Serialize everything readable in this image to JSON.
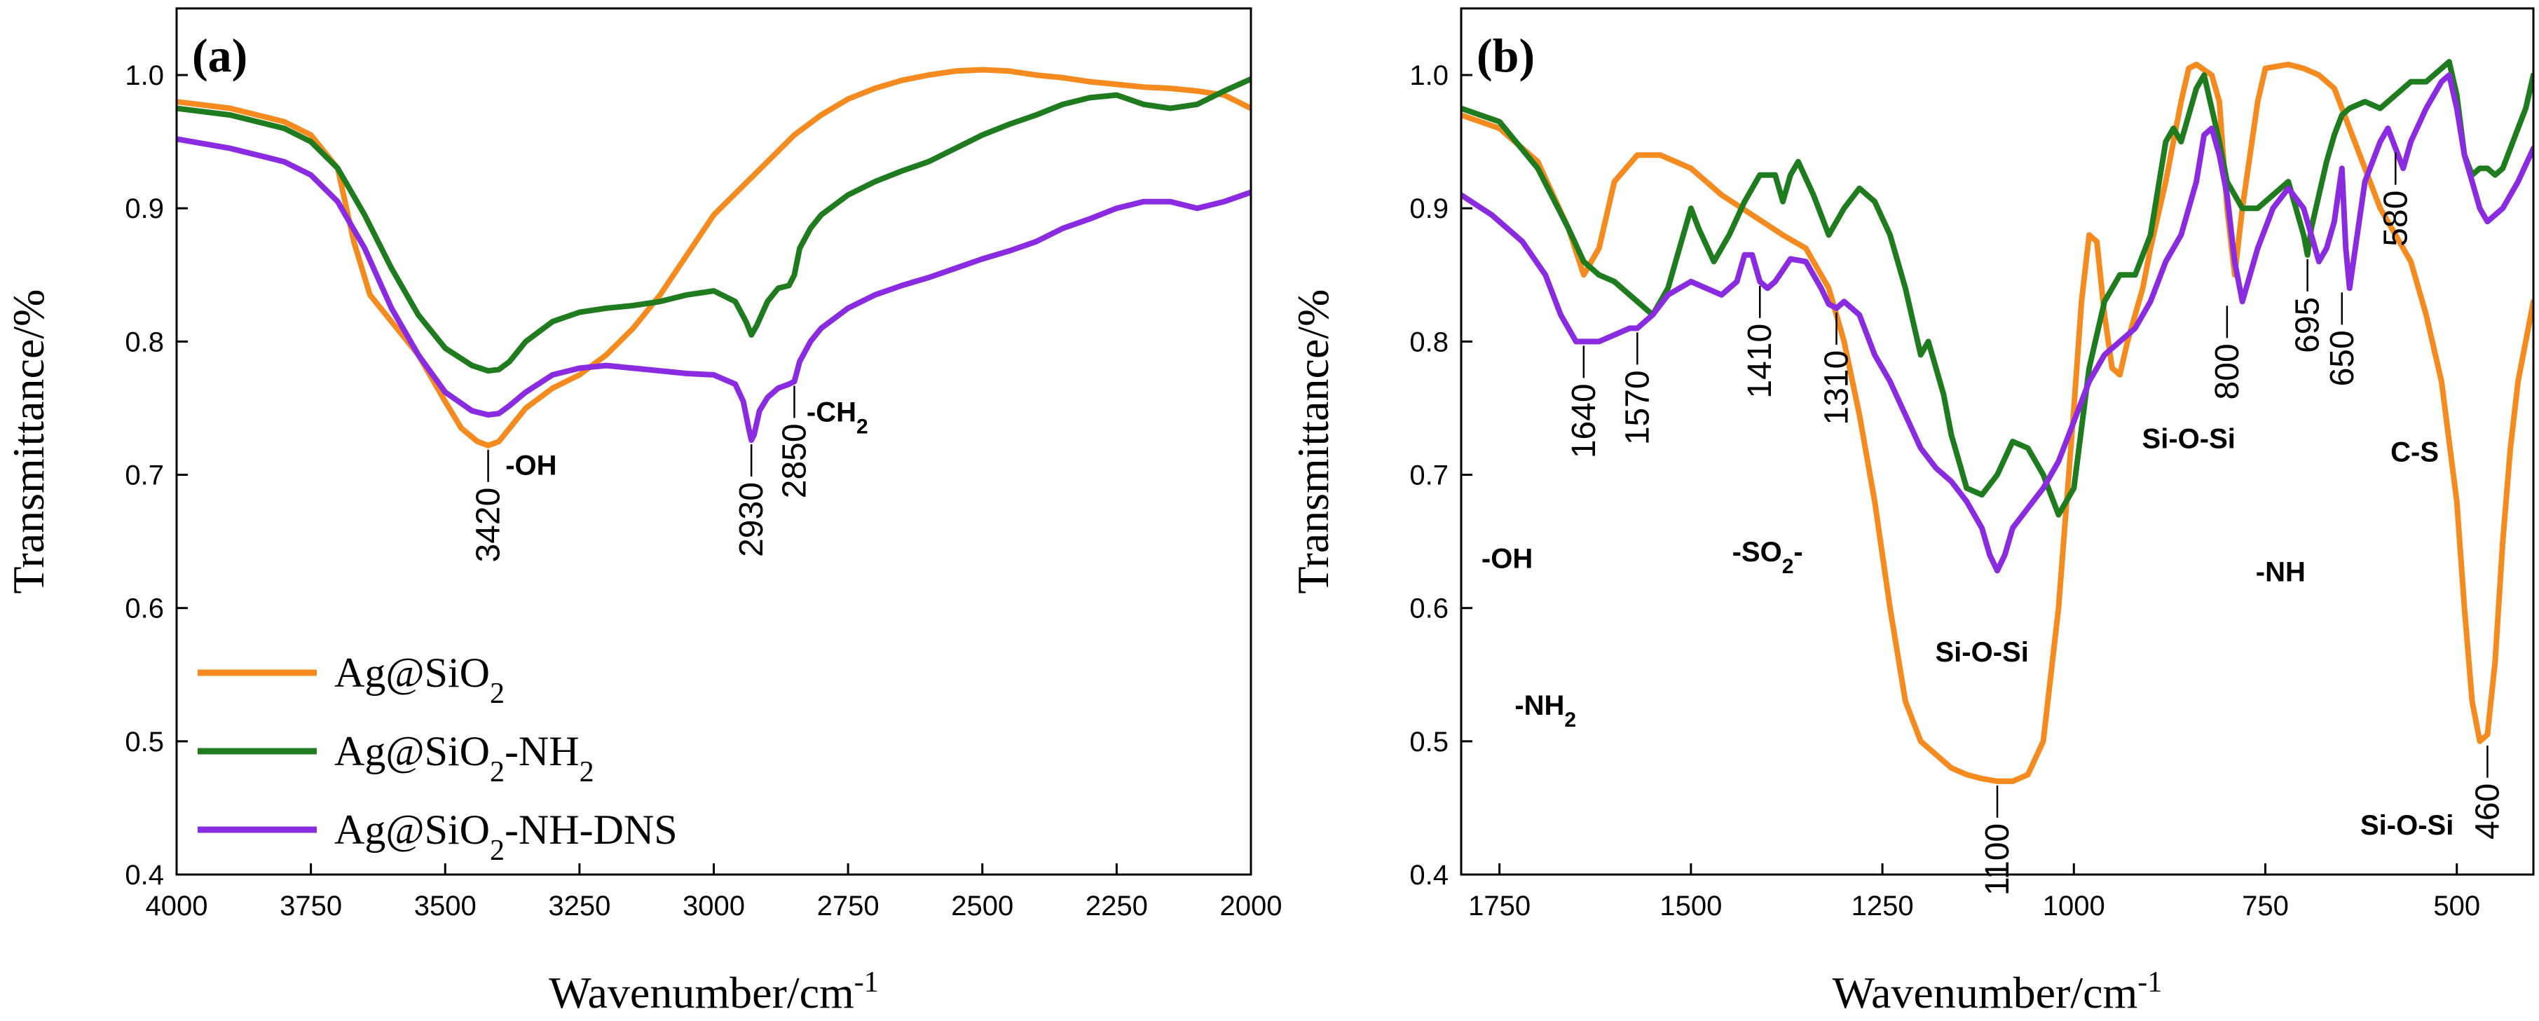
{
  "chart_data": [
    {
      "type": "line",
      "panel": "(a)",
      "xlabel": "Wavenumber/cm",
      "xlabel_sup": "-1",
      "ylabel": "Transmittance/%",
      "xlim": [
        4000,
        2000
      ],
      "ylim": [
        0.4,
        1.05
      ],
      "x_ticks": [
        4000,
        3750,
        3500,
        3250,
        3000,
        2750,
        2500,
        2250,
        2000
      ],
      "x_tick_labels": [
        "4000",
        "3750",
        "3500",
        "3250",
        "3000",
        "2750",
        "2500",
        "2250",
        "2000"
      ],
      "y_ticks": [
        0.4,
        0.5,
        0.6,
        0.7,
        0.8,
        0.9,
        1.0
      ],
      "y_tick_labels": [
        "0.4",
        "0.5",
        "0.6",
        "0.7",
        "0.8",
        "0.9",
        "1.0"
      ],
      "legend_position": "bottom-left",
      "series": [
        {
          "name": "Ag@SiO2",
          "label_main": "Ag@SiO",
          "label_sub": "2",
          "label_suffix": "",
          "color": "#F58A1F",
          "x": [
            4000,
            3900,
            3800,
            3750,
            3700,
            3670,
            3640,
            3600,
            3550,
            3500,
            3470,
            3440,
            3420,
            3400,
            3380,
            3350,
            3300,
            3250,
            3200,
            3150,
            3100,
            3050,
            3000,
            2950,
            2900,
            2850,
            2800,
            2750,
            2700,
            2650,
            2600,
            2550,
            2500,
            2450,
            2400,
            2350,
            2300,
            2250,
            2200,
            2150,
            2100,
            2050,
            2000
          ],
          "values": [
            0.98,
            0.975,
            0.965,
            0.955,
            0.93,
            0.875,
            0.835,
            0.815,
            0.79,
            0.755,
            0.735,
            0.725,
            0.722,
            0.725,
            0.735,
            0.75,
            0.765,
            0.775,
            0.79,
            0.81,
            0.835,
            0.865,
            0.895,
            0.915,
            0.935,
            0.955,
            0.97,
            0.982,
            0.99,
            0.996,
            1.0,
            1.003,
            1.004,
            1.003,
            1.0,
            0.998,
            0.995,
            0.993,
            0.991,
            0.99,
            0.988,
            0.985,
            0.975
          ]
        },
        {
          "name": "Ag@SiO2-NH2",
          "label_main": "Ag@SiO",
          "label_sub": "2",
          "label_suffix": "-NH",
          "label_sub2": "2",
          "color": "#1E7B1E",
          "x": [
            4000,
            3900,
            3800,
            3750,
            3700,
            3650,
            3600,
            3550,
            3500,
            3450,
            3420,
            3400,
            3380,
            3350,
            3300,
            3250,
            3200,
            3150,
            3100,
            3050,
            3000,
            2960,
            2940,
            2930,
            2920,
            2900,
            2880,
            2860,
            2850,
            2840,
            2820,
            2800,
            2750,
            2700,
            2650,
            2600,
            2550,
            2500,
            2450,
            2400,
            2350,
            2300,
            2250,
            2200,
            2150,
            2100,
            2050,
            2000
          ],
          "values": [
            0.975,
            0.97,
            0.96,
            0.95,
            0.93,
            0.895,
            0.855,
            0.82,
            0.795,
            0.782,
            0.778,
            0.779,
            0.785,
            0.8,
            0.815,
            0.822,
            0.825,
            0.827,
            0.83,
            0.835,
            0.838,
            0.83,
            0.815,
            0.805,
            0.812,
            0.83,
            0.84,
            0.842,
            0.85,
            0.87,
            0.885,
            0.895,
            0.91,
            0.92,
            0.928,
            0.935,
            0.945,
            0.955,
            0.963,
            0.97,
            0.978,
            0.983,
            0.985,
            0.978,
            0.975,
            0.978,
            0.988,
            0.997
          ]
        },
        {
          "name": "Ag@SiO2-NH-DNS",
          "label_main": "Ag@SiO",
          "label_sub": "2",
          "label_suffix": "-NH-DNS",
          "color": "#8A2BE2",
          "x": [
            4000,
            3900,
            3800,
            3750,
            3700,
            3650,
            3600,
            3550,
            3500,
            3450,
            3420,
            3400,
            3380,
            3350,
            3300,
            3250,
            3200,
            3150,
            3100,
            3050,
            3000,
            2960,
            2945,
            2935,
            2930,
            2925,
            2915,
            2900,
            2880,
            2860,
            2850,
            2840,
            2820,
            2800,
            2750,
            2700,
            2650,
            2600,
            2550,
            2500,
            2450,
            2400,
            2350,
            2300,
            2250,
            2200,
            2150,
            2100,
            2050,
            2000
          ],
          "values": [
            0.952,
            0.945,
            0.935,
            0.925,
            0.905,
            0.87,
            0.825,
            0.79,
            0.762,
            0.748,
            0.745,
            0.746,
            0.752,
            0.762,
            0.775,
            0.78,
            0.782,
            0.78,
            0.778,
            0.776,
            0.775,
            0.768,
            0.755,
            0.735,
            0.726,
            0.73,
            0.748,
            0.758,
            0.765,
            0.768,
            0.77,
            0.785,
            0.8,
            0.81,
            0.825,
            0.835,
            0.842,
            0.848,
            0.855,
            0.862,
            0.868,
            0.875,
            0.885,
            0.892,
            0.9,
            0.905,
            0.905,
            0.9,
            0.905,
            0.912
          ]
        }
      ],
      "peak_annotations": [
        {
          "label": "3420",
          "x": 3420,
          "y": 0.722
        },
        {
          "label": "2930",
          "x": 2930,
          "y": 0.726
        },
        {
          "label": "2850",
          "x": 2850,
          "y": 0.77
        }
      ],
      "group_annotations": [
        {
          "text": "-OH",
          "sub": "",
          "x": 3340,
          "y": 0.7
        },
        {
          "text": "-CH",
          "sub": "2",
          "x": 2770,
          "y": 0.74
        }
      ]
    },
    {
      "type": "line",
      "panel": "(b)",
      "xlabel": "Wavenumber/cm",
      "xlabel_sup": "-1",
      "ylabel": "Transmittance/%",
      "xlim": [
        1800,
        400
      ],
      "ylim": [
        0.4,
        1.05
      ],
      "x_ticks": [
        1750,
        1500,
        1250,
        1000,
        750,
        500
      ],
      "x_tick_labels": [
        "1750",
        "1500",
        "1250",
        "1000",
        "750",
        "500"
      ],
      "y_ticks": [
        0.4,
        0.5,
        0.6,
        0.7,
        0.8,
        0.9,
        1.0
      ],
      "y_tick_labels": [
        "0.4",
        "0.5",
        "0.6",
        "0.7",
        "0.8",
        "0.9",
        "1.0"
      ],
      "series": [
        {
          "name": "Ag@SiO2",
          "color": "#F58A1F",
          "x": [
            1800,
            1750,
            1700,
            1660,
            1640,
            1620,
            1600,
            1570,
            1540,
            1500,
            1460,
            1420,
            1380,
            1350,
            1320,
            1300,
            1280,
            1260,
            1240,
            1220,
            1200,
            1180,
            1160,
            1140,
            1120,
            1100,
            1080,
            1060,
            1040,
            1020,
            1000,
            990,
            980,
            970,
            960,
            950,
            940,
            930,
            910,
            900,
            880,
            860,
            850,
            840,
            820,
            810,
            800,
            790,
            780,
            760,
            750,
            720,
            700,
            680,
            660,
            640,
            620,
            600,
            580,
            560,
            540,
            520,
            500,
            490,
            480,
            470,
            460,
            450,
            440,
            430,
            420,
            400
          ],
          "values": [
            0.97,
            0.96,
            0.935,
            0.885,
            0.85,
            0.87,
            0.92,
            0.94,
            0.94,
            0.93,
            0.91,
            0.895,
            0.88,
            0.87,
            0.84,
            0.8,
            0.745,
            0.68,
            0.6,
            0.53,
            0.5,
            0.49,
            0.48,
            0.475,
            0.472,
            0.47,
            0.47,
            0.475,
            0.5,
            0.6,
            0.75,
            0.83,
            0.88,
            0.875,
            0.82,
            0.78,
            0.775,
            0.8,
            0.84,
            0.87,
            0.92,
            0.98,
            1.005,
            1.008,
            1.0,
            0.98,
            0.9,
            0.85,
            0.9,
            0.98,
            1.005,
            1.008,
            1.005,
            1.0,
            0.99,
            0.96,
            0.93,
            0.9,
            0.88,
            0.86,
            0.82,
            0.77,
            0.68,
            0.6,
            0.53,
            0.5,
            0.505,
            0.56,
            0.65,
            0.72,
            0.77,
            0.83
          ]
        },
        {
          "name": "Ag@SiO2-NH2",
          "color": "#1E7B1E",
          "x": [
            1800,
            1750,
            1700,
            1660,
            1640,
            1620,
            1600,
            1570,
            1550,
            1530,
            1520,
            1500,
            1490,
            1470,
            1450,
            1430,
            1410,
            1390,
            1380,
            1370,
            1360,
            1340,
            1320,
            1300,
            1280,
            1260,
            1240,
            1220,
            1200,
            1190,
            1180,
            1170,
            1160,
            1150,
            1140,
            1120,
            1100,
            1080,
            1060,
            1040,
            1020,
            1000,
            980,
            960,
            940,
            920,
            900,
            880,
            870,
            860,
            840,
            830,
            820,
            810,
            800,
            780,
            760,
            740,
            720,
            700,
            695,
            690,
            680,
            670,
            660,
            650,
            640,
            620,
            600,
            580,
            560,
            540,
            520,
            510,
            500,
            490,
            480,
            470,
            460,
            450,
            440,
            430,
            420,
            410,
            400
          ],
          "values": [
            0.975,
            0.965,
            0.93,
            0.885,
            0.86,
            0.85,
            0.845,
            0.83,
            0.82,
            0.84,
            0.86,
            0.9,
            0.885,
            0.86,
            0.88,
            0.905,
            0.925,
            0.925,
            0.905,
            0.925,
            0.935,
            0.91,
            0.88,
            0.9,
            0.915,
            0.905,
            0.88,
            0.84,
            0.79,
            0.8,
            0.78,
            0.76,
            0.73,
            0.71,
            0.69,
            0.685,
            0.7,
            0.725,
            0.72,
            0.7,
            0.67,
            0.69,
            0.78,
            0.83,
            0.85,
            0.85,
            0.88,
            0.95,
            0.96,
            0.95,
            0.99,
            1.0,
            0.975,
            0.95,
            0.92,
            0.9,
            0.9,
            0.91,
            0.92,
            0.88,
            0.865,
            0.885,
            0.91,
            0.935,
            0.955,
            0.97,
            0.975,
            0.98,
            0.975,
            0.985,
            0.995,
            0.995,
            1.005,
            1.01,
            0.985,
            0.94,
            0.925,
            0.93,
            0.93,
            0.925,
            0.93,
            0.945,
            0.96,
            0.975,
            1.0
          ]
        },
        {
          "name": "Ag@SiO2-NH-DNS",
          "color": "#8A2BE2",
          "x": [
            1800,
            1760,
            1720,
            1690,
            1670,
            1650,
            1640,
            1620,
            1600,
            1580,
            1570,
            1550,
            1530,
            1500,
            1480,
            1460,
            1440,
            1430,
            1420,
            1410,
            1400,
            1390,
            1370,
            1350,
            1330,
            1320,
            1310,
            1300,
            1280,
            1260,
            1240,
            1220,
            1200,
            1180,
            1160,
            1140,
            1120,
            1110,
            1100,
            1090,
            1080,
            1060,
            1040,
            1020,
            1000,
            980,
            960,
            940,
            920,
            900,
            880,
            860,
            840,
            830,
            820,
            810,
            800,
            790,
            780,
            760,
            740,
            720,
            700,
            690,
            680,
            670,
            660,
            655,
            650,
            645,
            640,
            630,
            620,
            600,
            590,
            580,
            570,
            560,
            540,
            520,
            510,
            500,
            490,
            480,
            470,
            460,
            450,
            440,
            420,
            400
          ],
          "values": [
            0.91,
            0.895,
            0.875,
            0.85,
            0.82,
            0.8,
            0.8,
            0.8,
            0.805,
            0.81,
            0.81,
            0.82,
            0.835,
            0.845,
            0.84,
            0.835,
            0.845,
            0.865,
            0.865,
            0.845,
            0.84,
            0.845,
            0.862,
            0.86,
            0.84,
            0.828,
            0.825,
            0.83,
            0.82,
            0.79,
            0.77,
            0.745,
            0.72,
            0.705,
            0.695,
            0.68,
            0.66,
            0.64,
            0.628,
            0.64,
            0.66,
            0.675,
            0.69,
            0.71,
            0.74,
            0.77,
            0.79,
            0.8,
            0.81,
            0.83,
            0.86,
            0.88,
            0.92,
            0.955,
            0.96,
            0.94,
            0.91,
            0.86,
            0.83,
            0.87,
            0.9,
            0.915,
            0.9,
            0.88,
            0.86,
            0.87,
            0.89,
            0.91,
            0.93,
            0.87,
            0.84,
            0.88,
            0.92,
            0.95,
            0.96,
            0.945,
            0.93,
            0.95,
            0.975,
            0.995,
            1.0,
            0.975,
            0.94,
            0.92,
            0.9,
            0.89,
            0.895,
            0.9,
            0.92,
            0.945
          ]
        }
      ],
      "peak_annotations": [
        {
          "label": "1640",
          "x": 1640,
          "y": 0.8
        },
        {
          "label": "1570",
          "x": 1570,
          "y": 0.81
        },
        {
          "label": "1410",
          "x": 1410,
          "y": 0.845
        },
        {
          "label": "1310",
          "x": 1310,
          "y": 0.825
        },
        {
          "label": "1100",
          "x": 1100,
          "y": 0.47
        },
        {
          "label": "800",
          "x": 800,
          "y": 0.83
        },
        {
          "label": "695",
          "x": 695,
          "y": 0.865
        },
        {
          "label": "650",
          "x": 650,
          "y": 0.84
        },
        {
          "label": "580",
          "x": 580,
          "y": 0.945
        },
        {
          "label": "460",
          "x": 460,
          "y": 0.5
        }
      ],
      "group_annotations": [
        {
          "text": "-OH",
          "sub": "",
          "x": 1740,
          "y": 0.63
        },
        {
          "text": "-NH",
          "sub": "2",
          "x": 1690,
          "y": 0.52
        },
        {
          "text": "-SO",
          "sub": "2",
          "suffix": "-",
          "x": 1400,
          "y": 0.635
        },
        {
          "text": "Si-O-Si",
          "sub": "",
          "x": 1120,
          "y": 0.56
        },
        {
          "text": "Si-O-Si",
          "sub": "",
          "x": 850,
          "y": 0.72
        },
        {
          "text": "-NH",
          "sub": "",
          "x": 730,
          "y": 0.62
        },
        {
          "text": "C-S",
          "sub": "",
          "x": 555,
          "y": 0.71
        },
        {
          "text": "Si-O-Si",
          "sub": "",
          "x": 565,
          "y": 0.43
        }
      ]
    }
  ]
}
